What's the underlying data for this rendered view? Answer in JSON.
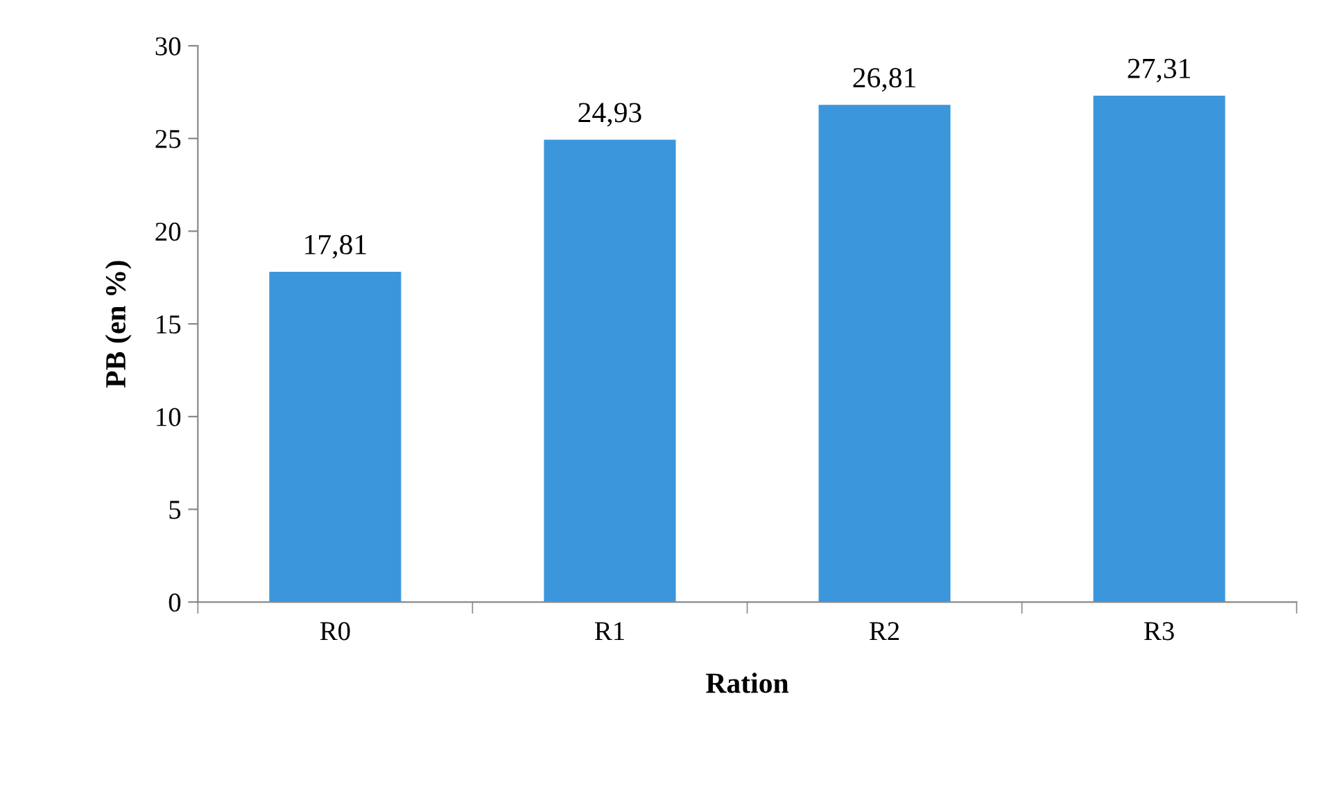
{
  "chart_data": {
    "type": "bar",
    "xlabel": "Ration",
    "ylabel": "PB (en %)",
    "categories": [
      "R0",
      "R1",
      "R2",
      "R3"
    ],
    "values": [
      17.81,
      24.93,
      26.81,
      27.31
    ],
    "value_labels": [
      "17,81",
      "24,93",
      "26,81",
      "27,31"
    ],
    "color": "#3c96dc",
    "ylim": [
      0,
      30
    ],
    "yticks": [
      0,
      5,
      10,
      15,
      20,
      25,
      30
    ],
    "grid": false,
    "legend": false
  }
}
